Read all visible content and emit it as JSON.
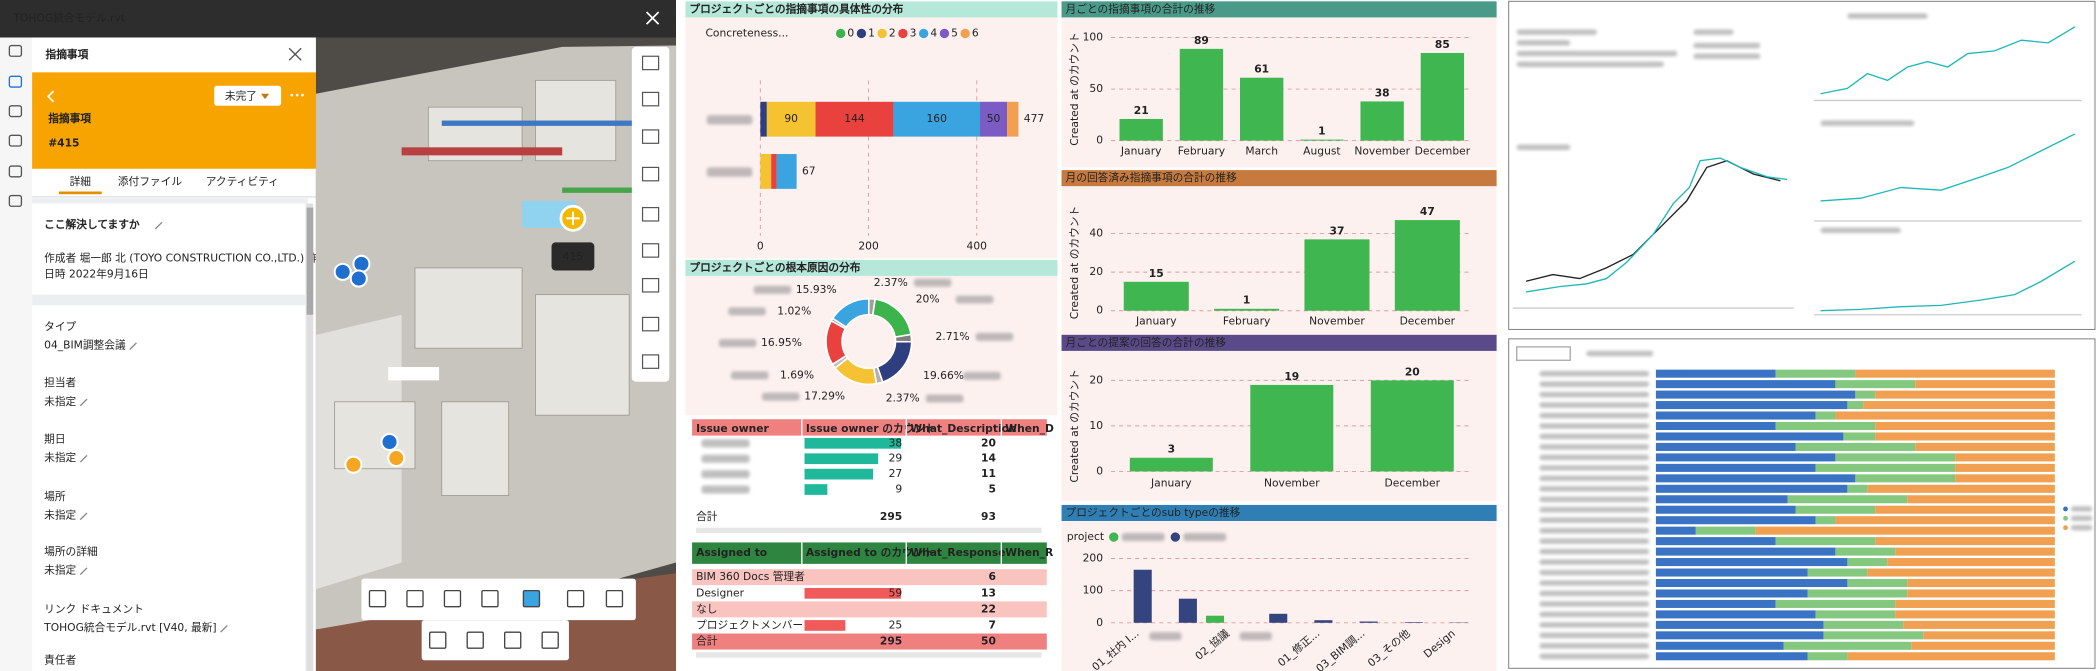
{
  "viewer": {
    "file_title": "TOHOG統合モデル.rvt",
    "panel_title": "指摘事項",
    "status": "未完了",
    "issue_label": "指摘事項",
    "issue_number": "#415",
    "tabs": [
      "詳細",
      "添付ファイル",
      "アクティビティ"
    ],
    "question": "ここ解決してますか",
    "meta": [
      "作成者 堀一郎 北 (TOYO CONSTRUCTION CO.,LTD.) 作成",
      "日時 2022年9月16日"
    ],
    "fields": [
      {
        "label": "タイプ",
        "value": "04_BIM調整会議"
      },
      {
        "label": "担当者",
        "value": "未指定"
      },
      {
        "label": "期日",
        "value": "未指定"
      },
      {
        "label": "場所",
        "value": "未指定"
      },
      {
        "label": "場所の詳細",
        "value": "未指定"
      },
      {
        "label": "リンク ドキュメント",
        "value": "TOHOG統合モデル.rvt [V40, 最新]"
      },
      {
        "label": "責任者"
      }
    ],
    "pin_label": "415"
  },
  "tables": [
    {
      "columns": [
        "Issue owner",
        "Issue owner のカウント",
        "What_Description",
        "When_D"
      ],
      "rows": [
        [
          null,
          38,
          20
        ],
        [
          null,
          29,
          14
        ],
        [
          null,
          27,
          11
        ],
        [
          null,
          9,
          5
        ]
      ],
      "total": [
        "合計",
        295,
        93
      ]
    },
    {
      "columns": [
        "Assigned to",
        "Assigned to のカウント",
        "What_Response",
        "When_R"
      ],
      "rows": [
        [
          "BIM 360 Docs 管理者",
          null,
          6
        ],
        [
          "Designer",
          59,
          13
        ],
        [
          "なし",
          null,
          22
        ],
        [
          "プロジェクトメンバー",
          25,
          7
        ]
      ],
      "total": [
        "合計",
        295,
        50
      ]
    }
  ],
  "chart_data": [
    {
      "type": "hstack",
      "title": "プロジェクトごとの指摘事項の具体性の分布",
      "legend_title": "Concreteness...",
      "categories": [
        null,
        null
      ],
      "series": [
        {
          "name": "0",
          "color": "#3cb44b",
          "values": [
            0,
            0
          ]
        },
        {
          "name": "1",
          "color": "#2e3f7f",
          "values": [
            12,
            0
          ]
        },
        {
          "name": "2",
          "color": "#f5c232",
          "values": [
            90,
            20
          ]
        },
        {
          "name": "3",
          "color": "#e8413e",
          "values": [
            144,
            10
          ]
        },
        {
          "name": "4",
          "color": "#3aa4e0",
          "values": [
            160,
            37
          ]
        },
        {
          "name": "5",
          "color": "#7b5cc4",
          "values": [
            50,
            0
          ]
        },
        {
          "name": "6",
          "color": "#f0a050",
          "values": [
            21,
            0
          ]
        }
      ],
      "totals": [
        477,
        67
      ],
      "xlim": [
        0,
        480
      ],
      "xticks": [
        0,
        200,
        400
      ],
      "grid": true
    },
    {
      "type": "donut",
      "title": "プロジェクトごとの根本原因の分布",
      "categories": [
        null,
        null,
        null,
        null,
        null,
        null,
        null,
        null,
        null,
        null
      ],
      "values": [
        2.37,
        20,
        2.71,
        19.66,
        2.37,
        17.29,
        1.69,
        16.95,
        1.02,
        15.93
      ],
      "value_labels": [
        "2.37%",
        "20%",
        "2.71%",
        "19.66%",
        "2.37%",
        "17.29%",
        "1.69%",
        "16.95%",
        "1.02%",
        "15.93%"
      ],
      "colors": [
        "#9e9e9e",
        "#3cb44b",
        "#7f7f7f",
        "#2e3f7f",
        "#b0b0b0",
        "#f5c232",
        "#c0c0c0",
        "#e8413e",
        "#a0a0a0",
        "#3aa4e0"
      ]
    },
    {
      "type": "bar",
      "title": "月ごとの指摘事項の合計の推移",
      "ylabel": "Created at のカウント",
      "categories": [
        "January",
        "February",
        "March",
        "August",
        "November",
        "December"
      ],
      "values": [
        21,
        89,
        61,
        1,
        38,
        85
      ],
      "color": "#3fb650",
      "ylim": [
        0,
        100
      ],
      "yticks": [
        0,
        50,
        100
      ],
      "grid": true
    },
    {
      "type": "bar",
      "title": "月の回答済み指摘事項の合計の推移",
      "ylabel": "Created at のカウント",
      "categories": [
        "January",
        "February",
        "November",
        "December"
      ],
      "values": [
        15,
        1,
        37,
        47
      ],
      "color": "#3fb650",
      "ylim": [
        0,
        50
      ],
      "yticks": [
        0,
        20,
        40
      ],
      "grid": true
    },
    {
      "type": "bar",
      "title": "月ごとの提案の回答の合計の推移",
      "ylabel": "Created at のカウント",
      "categories": [
        "January",
        "November",
        "December"
      ],
      "values": [
        3,
        19,
        20
      ],
      "color": "#3fb650",
      "ylim": [
        0,
        20
      ],
      "yticks": [
        0,
        10,
        20
      ],
      "grid": true
    },
    {
      "type": "grouped_bar",
      "title": "プロジェクトごとのsub typeの推移",
      "legend_title": "project",
      "categories": [
        "01_社内 I...",
        null,
        "02_協議",
        null,
        "01_修正...",
        "03_BIM調...",
        "03_その他",
        "Design"
      ],
      "series": [
        {
          "name": null,
          "color": "#3fb650",
          "values": [
            0,
            0,
            22,
            0,
            0,
            0,
            0,
            0
          ]
        },
        {
          "name": null,
          "color": "#34447f",
          "values": [
            165,
            75,
            0,
            28,
            8,
            4,
            2,
            1
          ]
        }
      ],
      "ylim": [
        0,
        200
      ],
      "yticks": [
        0,
        100,
        200
      ],
      "grid": true
    },
    {
      "type": "hstack100",
      "categories": [
        null,
        null,
        null,
        null,
        null,
        null,
        null,
        null,
        null,
        null,
        null,
        null,
        null,
        null,
        null,
        null,
        null,
        null,
        null,
        null,
        null,
        null,
        null,
        null,
        null,
        null,
        null,
        null
      ],
      "series": [
        {
          "name": null,
          "color": "#3b73c4",
          "values": [
            30,
            45,
            50,
            48,
            40,
            30,
            47,
            35,
            45,
            40,
            50,
            48,
            33,
            35,
            40,
            10,
            30,
            45,
            48,
            38,
            48,
            38,
            30,
            40,
            42,
            42,
            32,
            38
          ]
        },
        {
          "name": null,
          "color": "#84c77f",
          "values": [
            20,
            20,
            5,
            4,
            5,
            25,
            8,
            30,
            30,
            35,
            25,
            5,
            30,
            20,
            5,
            15,
            25,
            15,
            10,
            15,
            15,
            25,
            30,
            20,
            20,
            25,
            32,
            10
          ]
        },
        {
          "name": null,
          "color": "#f0a050",
          "values": [
            50,
            35,
            45,
            48,
            55,
            45,
            45,
            35,
            25,
            25,
            25,
            47,
            37,
            45,
            55,
            75,
            45,
            40,
            42,
            47,
            37,
            37,
            40,
            40,
            38,
            33,
            36,
            52
          ]
        }
      ],
      "xlim": [
        0,
        100
      ]
    }
  ]
}
